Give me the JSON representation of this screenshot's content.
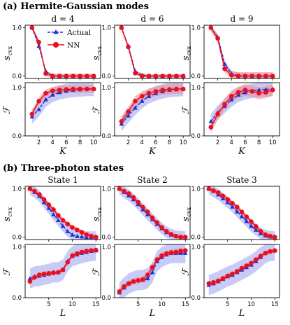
{
  "figure": {
    "section_a_title": "(a) Hermite-Gaussian modes",
    "section_b_title": "(b) Three-photon states"
  },
  "colors": {
    "actual": "#1f2fd6",
    "nn": "#e8101e",
    "actual_band": "#9aa0ee",
    "nn_band": "#f08a8a"
  },
  "legend": {
    "actual_label": "Actual",
    "nn_label": "NN"
  },
  "chart_data": [
    {
      "type": "line",
      "panel": "a-top-1",
      "title": "d = 4",
      "xlabel": "",
      "ylabel": "s_cvx",
      "xlim": [
        0,
        11
      ],
      "ylim": [
        -0.05,
        1.05
      ],
      "xticks": [
        2,
        4,
        6,
        8,
        10
      ],
      "yticks": [
        0,
        1
      ],
      "xticklabels_shown": false,
      "x": [
        1,
        2,
        3,
        4,
        5,
        6,
        7,
        8,
        9,
        10
      ],
      "series": [
        {
          "name": "Actual",
          "values": [
            1.0,
            0.62,
            0.1,
            0.0,
            0.0,
            0.0,
            0.0,
            0.0,
            0.0,
            0.0
          ],
          "band": 0.03
        },
        {
          "name": "NN",
          "values": [
            1.0,
            0.7,
            0.05,
            0.0,
            0.0,
            0.0,
            0.0,
            0.0,
            0.0,
            0.0
          ],
          "band": 0.05
        }
      ]
    },
    {
      "type": "line",
      "panel": "a-top-2",
      "title": "d = 6",
      "xlabel": "",
      "ylabel": "s_cvx",
      "xlim": [
        0,
        11
      ],
      "ylim": [
        -0.05,
        1.05
      ],
      "xticks": [
        2,
        4,
        6,
        8,
        10
      ],
      "yticks": [
        0,
        1
      ],
      "xticklabels_shown": false,
      "x": [
        1,
        2,
        3,
        4,
        5,
        6,
        7,
        8,
        9,
        10
      ],
      "series": [
        {
          "name": "Actual",
          "values": [
            1.0,
            0.62,
            0.1,
            0.02,
            0.0,
            0.0,
            0.0,
            0.0,
            0.0,
            0.0
          ],
          "band": 0.03
        },
        {
          "name": "NN",
          "values": [
            1.0,
            0.6,
            0.06,
            0.0,
            0.0,
            0.0,
            0.0,
            0.0,
            0.0,
            0.0
          ],
          "band": 0.04
        }
      ]
    },
    {
      "type": "line",
      "panel": "a-top-3",
      "title": "d = 9",
      "xlabel": "",
      "ylabel": "s_cvx",
      "xlim": [
        0,
        11
      ],
      "ylim": [
        -0.05,
        1.05
      ],
      "xticks": [
        2,
        4,
        6,
        8,
        10
      ],
      "yticks": [
        0,
        1
      ],
      "xticklabels_shown": false,
      "x": [
        1,
        2,
        3,
        4,
        5,
        6,
        7,
        8,
        9,
        10
      ],
      "series": [
        {
          "name": "Actual",
          "values": [
            1.0,
            0.8,
            0.25,
            0.05,
            0.01,
            0.0,
            0.0,
            0.0,
            0.0,
            0.0
          ],
          "band": 0.06
        },
        {
          "name": "NN",
          "values": [
            1.0,
            0.78,
            0.15,
            0.02,
            0.0,
            0.0,
            0.0,
            0.0,
            0.0,
            0.0
          ],
          "band": 0.08
        }
      ]
    },
    {
      "type": "line",
      "panel": "a-bot-1",
      "title": "",
      "xlabel": "K",
      "ylabel": "F",
      "xlim": [
        0,
        11
      ],
      "ylim": [
        0.0,
        1.1
      ],
      "xticks": [
        2,
        4,
        6,
        8,
        10
      ],
      "yticks": [
        0,
        1
      ],
      "xticklabels_shown": true,
      "x": [
        1,
        2,
        3,
        4,
        5,
        6,
        7,
        8,
        9,
        10
      ],
      "series": [
        {
          "name": "Actual",
          "values": [
            0.4,
            0.55,
            0.75,
            0.85,
            0.9,
            0.93,
            0.95,
            0.96,
            0.97,
            0.97
          ],
          "band": 0.15
        },
        {
          "name": "NN",
          "values": [
            0.45,
            0.72,
            0.88,
            0.93,
            0.95,
            0.96,
            0.97,
            0.97,
            0.97,
            0.97
          ],
          "band": 0.08
        }
      ]
    },
    {
      "type": "line",
      "panel": "a-bot-2",
      "title": "",
      "xlabel": "K",
      "ylabel": "F",
      "xlim": [
        0,
        11
      ],
      "ylim": [
        0.0,
        1.1
      ],
      "xticks": [
        2,
        4,
        6,
        8,
        10
      ],
      "yticks": [
        0,
        1
      ],
      "xticklabels_shown": true,
      "x": [
        1,
        2,
        3,
        4,
        5,
        6,
        7,
        8,
        9,
        10
      ],
      "series": [
        {
          "name": "Actual",
          "values": [
            0.25,
            0.42,
            0.58,
            0.72,
            0.82,
            0.88,
            0.92,
            0.95,
            0.96,
            0.97
          ],
          "band": 0.15
        },
        {
          "name": "NN",
          "values": [
            0.3,
            0.5,
            0.72,
            0.82,
            0.88,
            0.92,
            0.95,
            0.96,
            0.97,
            0.97
          ],
          "band": 0.1
        }
      ]
    },
    {
      "type": "line",
      "panel": "a-bot-3",
      "title": "",
      "xlabel": "K",
      "ylabel": "F",
      "xlim": [
        0,
        11
      ],
      "ylim": [
        0.0,
        1.1
      ],
      "xticks": [
        2,
        4,
        6,
        8,
        10
      ],
      "yticks": [
        0,
        1
      ],
      "xticklabels_shown": true,
      "x": [
        1,
        2,
        3,
        4,
        5,
        6,
        7,
        8,
        9,
        10
      ],
      "series": [
        {
          "name": "Actual",
          "values": [
            0.3,
            0.48,
            0.62,
            0.75,
            0.85,
            0.9,
            0.93,
            0.95,
            0.96,
            0.97
          ],
          "band": 0.15
        },
        {
          "name": "NN",
          "values": [
            0.18,
            0.45,
            0.65,
            0.82,
            0.9,
            0.95,
            0.92,
            0.88,
            0.9,
            0.95
          ],
          "band": 0.12
        }
      ]
    },
    {
      "type": "line",
      "panel": "b-top-1",
      "title": "State 1",
      "xlabel": "",
      "ylabel": "s_cvx",
      "xlim": [
        0,
        16
      ],
      "ylim": [
        -0.05,
        1.05
      ],
      "xticks": [
        5,
        10,
        15
      ],
      "yticks": [
        0,
        1
      ],
      "xticklabels_shown": false,
      "x": [
        1,
        2,
        3,
        4,
        5,
        6,
        7,
        8,
        9,
        10,
        11,
        12,
        13,
        14,
        15
      ],
      "series": [
        {
          "name": "Actual",
          "values": [
            1.0,
            0.93,
            0.85,
            0.72,
            0.6,
            0.47,
            0.35,
            0.23,
            0.12,
            0.05,
            0.02,
            0.01,
            0.0,
            0.0,
            0.0
          ],
          "band": 0.12
        },
        {
          "name": "NN",
          "values": [
            1.0,
            0.95,
            0.88,
            0.78,
            0.67,
            0.57,
            0.45,
            0.35,
            0.27,
            0.2,
            0.15,
            0.1,
            0.05,
            0.02,
            0.0
          ],
          "band": 0.05
        }
      ]
    },
    {
      "type": "line",
      "panel": "b-top-2",
      "title": "State 2",
      "xlabel": "",
      "ylabel": "s_cvx",
      "xlim": [
        0,
        16
      ],
      "ylim": [
        -0.05,
        1.05
      ],
      "xticks": [
        5,
        10,
        15
      ],
      "yticks": [
        0,
        1
      ],
      "xticklabels_shown": false,
      "x": [
        1,
        2,
        3,
        4,
        5,
        6,
        7,
        8,
        9,
        10,
        11,
        12,
        13,
        14,
        15
      ],
      "series": [
        {
          "name": "Actual",
          "values": [
            1.0,
            0.93,
            0.86,
            0.78,
            0.68,
            0.57,
            0.47,
            0.37,
            0.27,
            0.18,
            0.1,
            0.05,
            0.02,
            0.01,
            0.0
          ],
          "band": 0.12
        },
        {
          "name": "NN",
          "values": [
            1.0,
            0.95,
            0.9,
            0.82,
            0.72,
            0.62,
            0.52,
            0.4,
            0.3,
            0.2,
            0.12,
            0.06,
            0.02,
            0.0,
            0.0
          ],
          "band": 0.05
        }
      ]
    },
    {
      "type": "line",
      "panel": "b-top-3",
      "title": "State 3",
      "xlabel": "",
      "ylabel": "s_cvx",
      "xlim": [
        0,
        16
      ],
      "ylim": [
        -0.05,
        1.05
      ],
      "xticks": [
        5,
        10,
        15
      ],
      "yticks": [
        0,
        1
      ],
      "xticklabels_shown": false,
      "x": [
        1,
        2,
        3,
        4,
        5,
        6,
        7,
        8,
        9,
        10,
        11,
        12,
        13,
        14,
        15
      ],
      "series": [
        {
          "name": "Actual",
          "values": [
            1.0,
            0.95,
            0.88,
            0.8,
            0.72,
            0.63,
            0.53,
            0.43,
            0.33,
            0.23,
            0.15,
            0.08,
            0.03,
            0.01,
            0.0
          ],
          "band": 0.12
        },
        {
          "name": "NN",
          "values": [
            1.0,
            0.96,
            0.92,
            0.85,
            0.78,
            0.7,
            0.62,
            0.52,
            0.42,
            0.32,
            0.22,
            0.12,
            0.05,
            0.02,
            0.0
          ],
          "band": 0.05
        }
      ]
    },
    {
      "type": "line",
      "panel": "b-bot-1",
      "title": "",
      "xlabel": "L",
      "ylabel": "F",
      "xlim": [
        0,
        16
      ],
      "ylim": [
        0.0,
        1.05
      ],
      "xticks": [
        5,
        10,
        15
      ],
      "yticks": [
        0,
        1
      ],
      "xticklabels_shown": true,
      "x": [
        1,
        2,
        3,
        4,
        5,
        6,
        7,
        8,
        9,
        10,
        11,
        12,
        13,
        14,
        15
      ],
      "series": [
        {
          "name": "Actual",
          "values": [
            0.38,
            0.42,
            0.43,
            0.45,
            0.47,
            0.5,
            0.5,
            0.55,
            0.72,
            0.82,
            0.85,
            0.88,
            0.9,
            0.92,
            0.93
          ],
          "band": 0.2
        },
        {
          "name": "NN",
          "values": [
            0.32,
            0.4,
            0.45,
            0.47,
            0.48,
            0.49,
            0.5,
            0.55,
            0.7,
            0.83,
            0.87,
            0.9,
            0.92,
            0.93,
            0.94
          ],
          "band": 0.05
        }
      ]
    },
    {
      "type": "line",
      "panel": "b-bot-2",
      "title": "",
      "xlabel": "L",
      "ylabel": "F",
      "xlim": [
        0,
        16
      ],
      "ylim": [
        0.0,
        1.05
      ],
      "xticks": [
        5,
        10,
        15
      ],
      "yticks": [
        0,
        1
      ],
      "xticklabels_shown": true,
      "x": [
        1,
        2,
        3,
        4,
        5,
        6,
        7,
        8,
        9,
        10,
        11,
        12,
        13,
        14,
        15
      ],
      "series": [
        {
          "name": "Actual",
          "values": [
            0.1,
            0.2,
            0.28,
            0.32,
            0.35,
            0.35,
            0.38,
            0.5,
            0.72,
            0.8,
            0.85,
            0.88,
            0.88,
            0.88,
            0.88
          ],
          "band": 0.2
        },
        {
          "name": "NN",
          "values": [
            0.12,
            0.22,
            0.28,
            0.32,
            0.34,
            0.36,
            0.45,
            0.6,
            0.75,
            0.83,
            0.87,
            0.89,
            0.9,
            0.92,
            0.93
          ],
          "band": 0.06
        }
      ]
    },
    {
      "type": "line",
      "panel": "b-bot-3",
      "title": "",
      "xlabel": "L",
      "ylabel": "F",
      "xlim": [
        0,
        16
      ],
      "ylim": [
        0.0,
        1.05
      ],
      "xticks": [
        5,
        10,
        15
      ],
      "yticks": [
        0,
        1
      ],
      "xticklabels_shown": true,
      "x": [
        1,
        2,
        3,
        4,
        5,
        6,
        7,
        8,
        9,
        10,
        11,
        12,
        13,
        14,
        15
      ],
      "series": [
        {
          "name": "Actual",
          "values": [
            0.25,
            0.28,
            0.32,
            0.37,
            0.42,
            0.45,
            0.5,
            0.55,
            0.6,
            0.65,
            0.72,
            0.8,
            0.88,
            0.92,
            0.93
          ],
          "band": 0.2
        },
        {
          "name": "NN",
          "values": [
            0.28,
            0.3,
            0.33,
            0.38,
            0.43,
            0.47,
            0.52,
            0.58,
            0.63,
            0.68,
            0.75,
            0.82,
            0.88,
            0.91,
            0.93
          ],
          "band": 0.05
        }
      ]
    }
  ]
}
